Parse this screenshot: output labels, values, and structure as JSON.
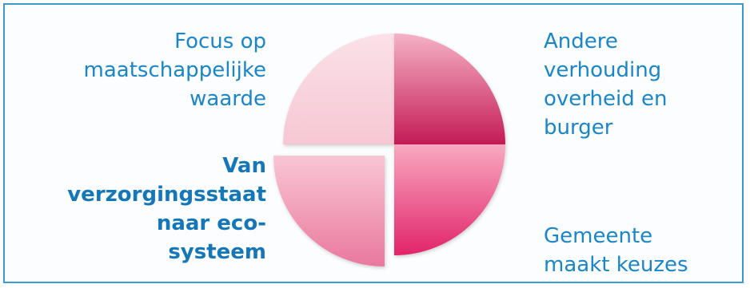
{
  "diagram": {
    "segments": [
      {
        "id": "top-left",
        "lines": [
          "Focus op",
          "maatschappelijke",
          "waarde"
        ],
        "color_light": "#f9d6df",
        "color_dark": "#efb6c6",
        "emphasis": false
      },
      {
        "id": "top-right",
        "lines": [
          "Andere",
          "verhouding",
          "overheid en",
          "burger"
        ],
        "color_light": "#f2a6bd",
        "color_dark": "#c7205a",
        "emphasis": false
      },
      {
        "id": "bottom-left",
        "lines": [
          "Van",
          "verzorgingsstaat",
          "naar eco-",
          "systeem"
        ],
        "color_light": "#f8bfd0",
        "color_dark": "#e886a6",
        "emphasis": true,
        "exploded": true
      },
      {
        "id": "bottom-right",
        "lines": [
          "Gemeente",
          "maakt keuzes"
        ],
        "color_light": "#f69bb8",
        "color_dark": "#e4296b",
        "emphasis": false
      }
    ],
    "colors": {
      "frame_border": "#3a9bd0",
      "label_text": "#1a86c7"
    }
  }
}
